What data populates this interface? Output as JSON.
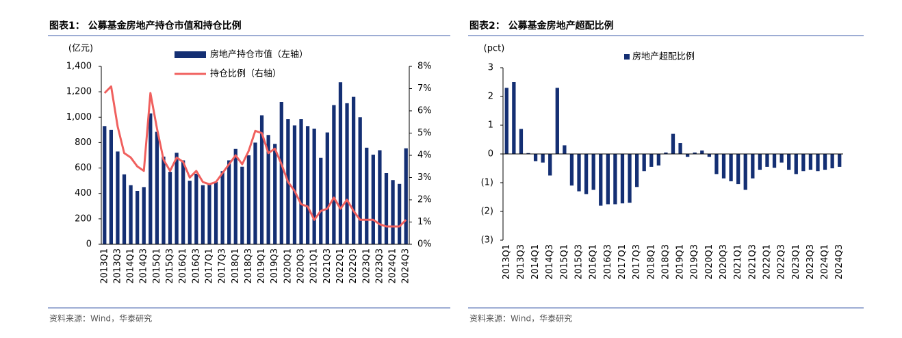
{
  "chart_data": [
    {
      "type": "bar",
      "title": "图表1： 公募基金房地产持仓市值和持仓比例",
      "y_unit": "(亿元)",
      "source": "资料来源：Wind，华泰研究",
      "categories": [
        "2013Q1",
        null,
        "2013Q3",
        null,
        "2014Q1",
        null,
        "2014Q3",
        null,
        "2015Q1",
        null,
        "2015Q3",
        null,
        "2016Q1",
        null,
        "2016Q3",
        null,
        "2017Q1",
        null,
        "2017Q3",
        null,
        "2018Q1",
        null,
        "2018Q3",
        null,
        "2019Q1",
        null,
        "2019Q3",
        null,
        "2020Q1",
        null,
        "2020Q3",
        null,
        "2021Q1",
        null,
        "2021Q3",
        null,
        "2022Q1",
        null,
        "2022Q3",
        null,
        "2023Q1",
        null,
        "2023Q3",
        null,
        "2024Q1",
        null,
        "2024Q3"
      ],
      "series": [
        {
          "name": "房地产持仓市值（左轴）",
          "color": "#142f73",
          "values": [
            930,
            900,
            730,
            550,
            465,
            420,
            450,
            1030,
            885,
            690,
            570,
            720,
            660,
            500,
            555,
            465,
            470,
            490,
            575,
            660,
            750,
            610,
            700,
            800,
            1015,
            860,
            790,
            1120,
            985,
            935,
            985,
            930,
            910,
            680,
            880,
            1095,
            1275,
            1110,
            1160,
            1000,
            760,
            705,
            740,
            560,
            505,
            475,
            755
          ]
        },
        {
          "name": "持仓比例（右轴）",
          "color": "#f0605e",
          "type": "line",
          "axis": "y2",
          "values": [
            6.8,
            7.1,
            5.3,
            4.1,
            3.9,
            3.5,
            3.3,
            6.8,
            5.2,
            3.8,
            3.3,
            3.9,
            3.7,
            3.0,
            3.3,
            2.8,
            2.7,
            2.8,
            3.2,
            3.6,
            4.0,
            3.6,
            4.2,
            5.1,
            5.0,
            4.1,
            4.3,
            3.6,
            2.8,
            2.4,
            1.8,
            1.7,
            1.1,
            1.5,
            1.6,
            2.1,
            1.6,
            2.0,
            1.5,
            1.1,
            1.1,
            1.1,
            0.9,
            0.8,
            0.8,
            0.8,
            1.1
          ]
        }
      ],
      "ylim": [
        0,
        1400
      ],
      "yticks": [
        0,
        200,
        400,
        600,
        800,
        {
          "value": 1000,
          "label": "1,000"
        },
        {
          "value": 1200,
          "label": "1,200"
        },
        {
          "value": 1400,
          "label": "1,400"
        }
      ],
      "y2lim": [
        0,
        8
      ],
      "y2ticks": [
        {
          "value": 0,
          "label": "0%"
        },
        {
          "value": 1,
          "label": "1%"
        },
        {
          "value": 2,
          "label": "2%"
        },
        {
          "value": 3,
          "label": "3%"
        },
        {
          "value": 4,
          "label": "4%"
        },
        {
          "value": 5,
          "label": "5%"
        },
        {
          "value": 6,
          "label": "6%"
        },
        {
          "value": 7,
          "label": "7%"
        },
        {
          "value": 8,
          "label": "8%"
        }
      ]
    },
    {
      "type": "bar",
      "title": "图表2： 公募基金房地产超配比例",
      "y_unit": "(pct)",
      "source": "资料来源：Wind，华泰研究",
      "categories": [
        "2013Q1",
        null,
        "2013Q3",
        null,
        "2014Q1",
        null,
        "2014Q3",
        null,
        "2015Q1",
        null,
        "2015Q3",
        null,
        "2016Q1",
        null,
        "2016Q3",
        null,
        "2017Q1",
        null,
        "2017Q3",
        null,
        "2018Q1",
        null,
        "2018Q3",
        null,
        "2019Q1",
        null,
        "2019Q3",
        null,
        "2020Q1",
        null,
        "2020Q3",
        null,
        "2021Q1",
        null,
        "2021Q3",
        null,
        "2022Q1",
        null,
        "2022Q3",
        null,
        "2023Q1",
        null,
        "2023Q3",
        null,
        "2024Q1",
        null,
        "2024Q3"
      ],
      "series": [
        {
          "name": "房地产超配比例",
          "color": "#142f73",
          "values": [
            2.3,
            2.5,
            0.87,
            0.03,
            -0.25,
            -0.3,
            -0.75,
            2.3,
            0.3,
            -1.1,
            -1.3,
            -1.4,
            -1.25,
            -1.8,
            -1.75,
            -1.75,
            -1.72,
            -1.7,
            -1.15,
            -0.6,
            -0.45,
            -0.4,
            0.05,
            0.7,
            0.38,
            -0.1,
            0.05,
            0.12,
            -0.1,
            -0.7,
            -0.85,
            -0.95,
            -1.05,
            -1.25,
            -0.85,
            -0.55,
            -0.45,
            -0.48,
            -0.3,
            -0.55,
            -0.7,
            -0.6,
            -0.55,
            -0.6,
            -0.55,
            -0.5,
            -0.45
          ]
        }
      ],
      "ylim": [
        -3,
        3
      ],
      "yticks": [
        {
          "value": -3,
          "label": "(3)"
        },
        {
          "value": -2,
          "label": "(2)"
        },
        {
          "value": -1,
          "label": "(1)"
        },
        0,
        1,
        2,
        3
      ]
    }
  ]
}
